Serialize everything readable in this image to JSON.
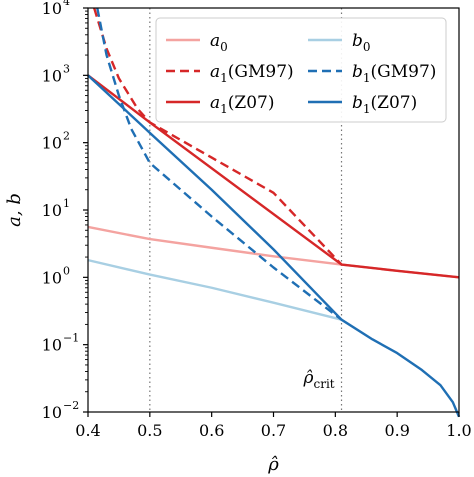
{
  "chart_data": {
    "type": "line",
    "xlabel": "ρ̂",
    "ylabel": "a, b",
    "xlim": [
      0.4,
      1.0
    ],
    "ylim": [
      0.01,
      10000
    ],
    "yscale": "log",
    "xticks": [
      "0.4",
      "0.5",
      "0.6",
      "0.7",
      "0.8",
      "0.9",
      "1.0"
    ],
    "yticks": [
      {
        "base": "10",
        "exp": "−2"
      },
      {
        "base": "10",
        "exp": "−1"
      },
      {
        "base": "10",
        "exp": "0"
      },
      {
        "base": "10",
        "exp": "1"
      },
      {
        "base": "10",
        "exp": "2"
      },
      {
        "base": "10",
        "exp": "3"
      },
      {
        "base": "10",
        "exp": "4"
      }
    ],
    "vlines": [
      0.5,
      0.81
    ],
    "annotation": {
      "text": "ρ̂",
      "sub": "crit",
      "x": 0.81
    },
    "legend_position": "upper-right",
    "series": [
      {
        "name": "a",
        "sub": "0",
        "tail": "",
        "color": "#f4a3a0",
        "dash": "solid",
        "x": [
          0.4,
          0.5,
          0.6,
          0.7,
          0.81,
          0.9,
          1.0
        ],
        "y": [
          5.6,
          3.7,
          2.75,
          2.05,
          1.55,
          1.25,
          1.0
        ]
      },
      {
        "name": "a",
        "sub": "1",
        "tail": "(GM97)",
        "color": "#d62728",
        "dash": "dashed",
        "x": [
          0.41,
          0.43,
          0.45,
          0.48,
          0.5,
          0.6,
          0.7,
          0.81
        ],
        "y": [
          10000,
          2500,
          900,
          320,
          200,
          60,
          18,
          1.55
        ]
      },
      {
        "name": "a",
        "sub": "1",
        "tail": "(Z07)",
        "color": "#d62728",
        "dash": "solid",
        "x": [
          0.4,
          0.5,
          0.81,
          0.9,
          1.0
        ],
        "y": [
          1000,
          200,
          1.55,
          1.25,
          1.0
        ]
      },
      {
        "name": "b",
        "sub": "0",
        "tail": "",
        "color": "#a8cfe3",
        "dash": "solid",
        "x": [
          0.4,
          0.5,
          0.6,
          0.7,
          0.81
        ],
        "y": [
          1.8,
          1.1,
          0.7,
          0.42,
          0.235
        ]
      },
      {
        "name": "b",
        "sub": "1",
        "tail": "(GM97)",
        "color": "#1f6fb4",
        "dash": "dashed",
        "x": [
          0.415,
          0.43,
          0.45,
          0.47,
          0.5,
          0.6,
          0.7,
          0.81
        ],
        "y": [
          10000,
          2000,
          500,
          160,
          50,
          8,
          1.4,
          0.235
        ]
      },
      {
        "name": "b",
        "sub": "1",
        "tail": "(Z07)",
        "color": "#1f6fb4",
        "dash": "solid",
        "x": [
          0.4,
          0.5,
          0.6,
          0.7,
          0.81,
          0.86,
          0.9,
          0.94,
          0.97,
          0.99,
          1.0
        ],
        "y": [
          1000,
          140,
          20,
          2.6,
          0.235,
          0.12,
          0.075,
          0.042,
          0.025,
          0.014,
          0.0085
        ]
      }
    ]
  }
}
